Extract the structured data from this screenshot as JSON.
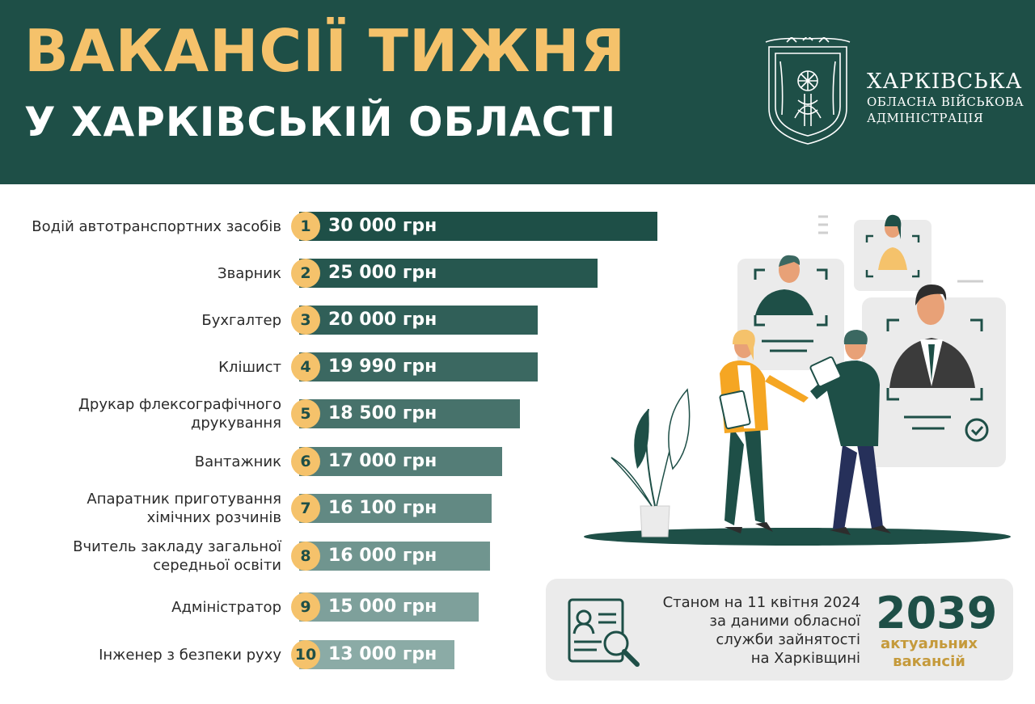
{
  "header": {
    "title_line1": "ВАКАНСІЇ ТИЖНЯ",
    "title_line2": "У ХАРКІВСЬКІЙ ОБЛАСТІ",
    "logo": {
      "line1": "ХАРКІВСЬКА",
      "line2": "ОБЛАСНА ВІЙСЬКОВА",
      "line3": "АДМІНІСТРАЦІЯ",
      "emblem_icon": "kharkiv-oblast-coat-of-arms-icon"
    }
  },
  "colors": {
    "header_bg": "#1e4f47",
    "title_accent": "#f5c26b",
    "rank_badge": "#f5c26b",
    "big_number": "#1e4f47",
    "big_label": "#c59a3b",
    "info_box_bg": "#ebebeb"
  },
  "chart_data": {
    "type": "bar",
    "orientation": "horizontal",
    "categories": [
      "Водій автотранспортних засобів",
      "Зварник",
      "Бухгалтер",
      "Клішист",
      "Друкар флексографічного друкування",
      "Вантажник",
      "Апаратник приготування хімічних розчинів",
      "Вчитель закладу загальної середньої освіти",
      "Адміністратор",
      "Інженер з безпеки руху"
    ],
    "category_lines": [
      [
        "Водій автотранспортних засобів"
      ],
      [
        "Зварник"
      ],
      [
        "Бухгалтер"
      ],
      [
        "Клішист"
      ],
      [
        "Друкар флексографічного",
        "друкування"
      ],
      [
        "Вантажник"
      ],
      [
        "Апаратник приготування",
        "хімічних розчинів"
      ],
      [
        "Вчитель закладу загальної",
        "середньої освіти"
      ],
      [
        "Адміністратор"
      ],
      [
        "Інженер з безпеки руху"
      ]
    ],
    "ranks": [
      "1",
      "2",
      "3",
      "4",
      "5",
      "6",
      "7",
      "8",
      "9",
      "10"
    ],
    "values": [
      30000,
      25000,
      20000,
      19990,
      18500,
      17000,
      16100,
      16000,
      15000,
      13000
    ],
    "value_labels": [
      "30 000 грн",
      "25 000 грн",
      "20 000 грн",
      "19 990 грн",
      "18 500 грн",
      "17 000 грн",
      "16 100 грн",
      "16 000 грн",
      "15 000 грн",
      "13 000 грн"
    ],
    "bar_colors": [
      "#1e4f47",
      "#26574f",
      "#305f58",
      "#3b6861",
      "#47726b",
      "#547d77",
      "#628983",
      "#70958f",
      "#7ea09b",
      "#8babA6"
    ]
  },
  "info": {
    "text_lines": [
      "Станом на 11 квітня 2024",
      "за даними обласної",
      "служби зайнятості",
      "на Харківщині"
    ],
    "big_number": "2039",
    "big_label_line1": "актуальних",
    "big_label_line2": "вакансій",
    "icon": "resume-search-icon"
  },
  "illustration": {
    "icon": "recruitment-people-illustration-icon"
  }
}
